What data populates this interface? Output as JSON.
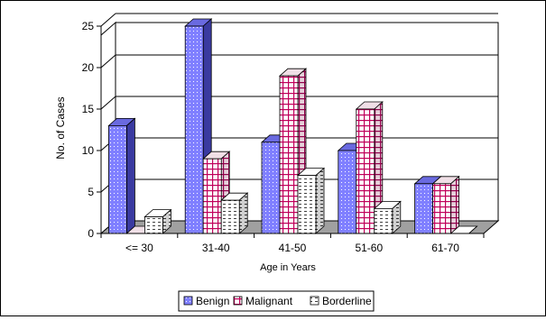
{
  "chart_data": {
    "type": "bar",
    "style": "3d-clustered",
    "categories": [
      "<= 30",
      "31-40",
      "41-50",
      "51-60",
      "61-70"
    ],
    "series": [
      {
        "name": "Benign",
        "values": [
          13,
          25,
          11,
          10,
          6
        ],
        "color": "#8080FF",
        "pattern": "dots"
      },
      {
        "name": "Malignant",
        "values": [
          0,
          9,
          19,
          15,
          6
        ],
        "color": "#C0005A",
        "pattern": "grid"
      },
      {
        "name": "Borderline",
        "values": [
          2,
          4,
          7,
          3,
          0
        ],
        "color": "#404040",
        "pattern": "dashes"
      }
    ],
    "xlabel": "Age in Years",
    "ylabel": "No. of Cases",
    "ylim": [
      0,
      25
    ],
    "yticks": [
      "0",
      "5",
      "10",
      "15",
      "20",
      "25"
    ],
    "grid": true,
    "legend": "bottom"
  }
}
